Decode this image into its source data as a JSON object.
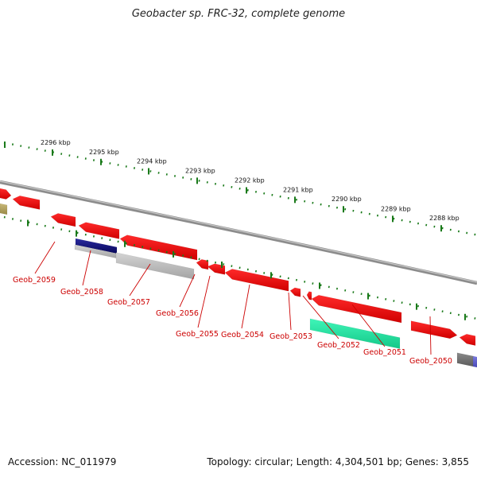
{
  "title": "Geobacter sp. FRC-32, complete genome",
  "footer": {
    "accession": "Accession: NC_011979",
    "summary": "Topology: circular; Length: 4,304,501 bp; Genes: 3,855"
  },
  "colors": {
    "gene_red": "#ee0000",
    "tick_green": "#1a7a1a",
    "backbone_gray": "#8c8c8c",
    "label_red": "#cc0000",
    "cds_navy": "#101080",
    "cds_silver": "#bdbdbd",
    "cds_green": "#22e8a0",
    "cds_olive": "#b0a060",
    "cds_dark": "#707070",
    "cds_violet": "#6060d0"
  },
  "scale_labels": [
    "2296 kbp",
    "2295 kbp",
    "2294 kbp",
    "2293 kbp",
    "2292 kbp",
    "2291 kbp",
    "2290 kbp",
    "2289 kbp",
    "2288 kbp"
  ],
  "gene_labels": [
    "Geob_2059",
    "Geob_2058",
    "Geob_2057",
    "Geob_2056",
    "Geob_2055",
    "Geob_2054",
    "Geob_2053",
    "Geob_2052",
    "Geob_2051",
    "Geob_2050"
  ]
}
